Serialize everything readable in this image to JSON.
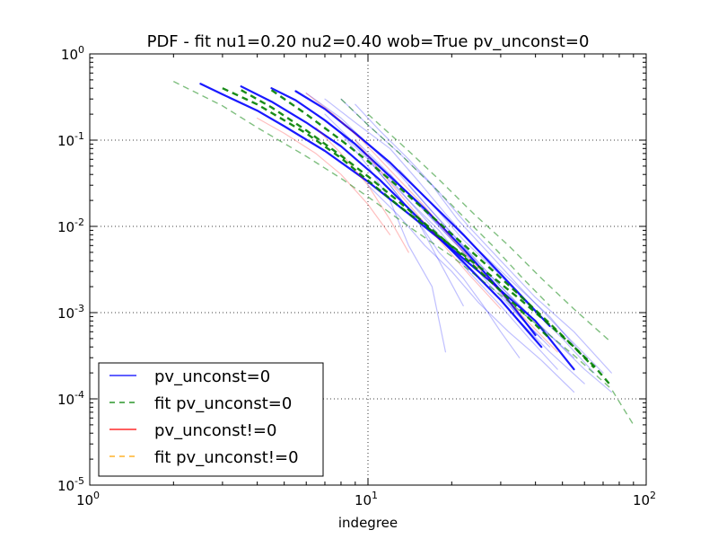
{
  "chart_data": {
    "type": "line",
    "title": "PDF - fit nu1=0.20 nu2=0.40 wob=True pv_unconst=0",
    "xlabel": "indegree",
    "ylabel": "",
    "x_scale": "log",
    "y_scale": "log",
    "xlim": [
      1,
      100
    ],
    "ylim": [
      1e-05,
      1
    ],
    "grid": true,
    "grid_style": "dotted",
    "legend_location": "lower-left",
    "x_ticks": [
      {
        "value": 1,
        "base": "10",
        "exp": "0"
      },
      {
        "value": 10,
        "base": "10",
        "exp": "1"
      },
      {
        "value": 100,
        "base": "10",
        "exp": "2"
      }
    ],
    "y_ticks": [
      {
        "value": 1,
        "base": "10",
        "exp": "0"
      },
      {
        "value": 0.1,
        "base": "10",
        "exp": "-1"
      },
      {
        "value": 0.01,
        "base": "10",
        "exp": "-2"
      },
      {
        "value": 0.001,
        "base": "10",
        "exp": "-3"
      },
      {
        "value": 0.0001,
        "base": "10",
        "exp": "-4"
      },
      {
        "value": 1e-05,
        "base": "10",
        "exp": "-5"
      }
    ],
    "legend": [
      {
        "label": "pv_unconst=0",
        "color": "#0000ff",
        "dash": false
      },
      {
        "label": "fit pv_unconst=0",
        "color": "#008000",
        "dash": true
      },
      {
        "label": "pv_unconst!=0",
        "color": "#ff0000",
        "dash": false
      },
      {
        "label": "fit pv_unconst!=0",
        "color": "#ffa500",
        "dash": true
      }
    ],
    "series": [
      {
        "group": "pv_unconst=0",
        "color": "#0000ff",
        "alpha": 0.9,
        "width": 2.2,
        "x": [
          2.5,
          3,
          4,
          5,
          7,
          10,
          14,
          20,
          28,
          40,
          55
        ],
        "y": [
          0.45,
          0.34,
          0.22,
          0.145,
          0.075,
          0.033,
          0.014,
          0.0055,
          0.0022,
          0.0008,
          0.00022
        ]
      },
      {
        "group": "pv_unconst=0",
        "color": "#0000ff",
        "alpha": 0.9,
        "width": 2.2,
        "x": [
          3.5,
          4.5,
          6,
          8,
          11,
          15,
          21,
          30,
          42
        ],
        "y": [
          0.42,
          0.28,
          0.16,
          0.085,
          0.035,
          0.013,
          0.0045,
          0.0014,
          0.0004
        ]
      },
      {
        "group": "pv_unconst=0",
        "color": "#0000ff",
        "alpha": 0.9,
        "width": 2.2,
        "x": [
          4.5,
          5.5,
          7,
          9,
          12,
          16,
          22,
          30,
          40
        ],
        "y": [
          0.4,
          0.29,
          0.17,
          0.09,
          0.038,
          0.016,
          0.0055,
          0.0018,
          0.00055
        ]
      },
      {
        "group": "pv_unconst=0",
        "color": "#0000ff",
        "alpha": 0.9,
        "width": 2.2,
        "x": [
          5.5,
          7,
          9,
          12,
          16,
          22,
          30,
          45
        ],
        "y": [
          0.37,
          0.23,
          0.12,
          0.055,
          0.022,
          0.008,
          0.0028,
          0.0007
        ]
      },
      {
        "group": "pv_unconst=0",
        "color": "#0000ff",
        "alpha": 0.25,
        "width": 1.2,
        "x": [
          6,
          8,
          10,
          13,
          17,
          22,
          30,
          40,
          55
        ],
        "y": [
          0.35,
          0.18,
          0.09,
          0.04,
          0.015,
          0.006,
          0.002,
          0.0008,
          0.0003
        ]
      },
      {
        "group": "pv_unconst=0",
        "color": "#0000ff",
        "alpha": 0.25,
        "width": 1.2,
        "x": [
          7,
          9,
          12,
          15,
          19,
          24,
          32,
          45,
          60
        ],
        "y": [
          0.3,
          0.16,
          0.08,
          0.035,
          0.014,
          0.006,
          0.0025,
          0.0009,
          0.0003
        ]
      },
      {
        "group": "pv_unconst=0",
        "color": "#0000ff",
        "alpha": 0.25,
        "width": 1.2,
        "x": [
          8,
          10,
          13,
          17,
          21,
          27,
          35,
          50,
          70
        ],
        "y": [
          0.3,
          0.15,
          0.07,
          0.03,
          0.012,
          0.005,
          0.002,
          0.0006,
          0.0002
        ]
      },
      {
        "group": "pv_unconst=0",
        "color": "#0000ff",
        "alpha": 0.25,
        "width": 1.2,
        "x": [
          9,
          11,
          14,
          18,
          23,
          30,
          40,
          55,
          75
        ],
        "y": [
          0.26,
          0.13,
          0.06,
          0.025,
          0.01,
          0.004,
          0.0015,
          0.0006,
          0.0002
        ]
      },
      {
        "group": "pv_unconst=0",
        "color": "#0000ff",
        "alpha": 0.25,
        "width": 1.2,
        "x": [
          6.5,
          8,
          10,
          12,
          15,
          18,
          22
        ],
        "y": [
          0.2,
          0.12,
          0.06,
          0.03,
          0.012,
          0.004,
          0.0012
        ]
      },
      {
        "group": "pv_unconst=0",
        "color": "#0000ff",
        "alpha": 0.25,
        "width": 1.2,
        "x": [
          8,
          10,
          12,
          14,
          17,
          19
        ],
        "y": [
          0.12,
          0.05,
          0.02,
          0.006,
          0.002,
          0.00035
        ]
      },
      {
        "group": "pv_unconst=0",
        "color": "#0000ff",
        "alpha": 0.25,
        "width": 1.2,
        "x": [
          10,
          12,
          15,
          18,
          22,
          26,
          30,
          35
        ],
        "y": [
          0.06,
          0.03,
          0.012,
          0.005,
          0.0025,
          0.0012,
          0.0006,
          0.0003
        ]
      },
      {
        "group": "pv_unconst=0",
        "color": "#0000ff",
        "alpha": 0.25,
        "width": 1.2,
        "x": [
          12,
          16,
          20,
          26,
          34,
          42
        ],
        "y": [
          0.04,
          0.015,
          0.007,
          0.003,
          0.001,
          0.0005
        ]
      },
      {
        "group": "pv_unconst=0",
        "color": "#0000ff",
        "alpha": 0.25,
        "width": 1.2,
        "x": [
          14,
          18,
          23,
          30,
          40,
          60,
          75
        ],
        "y": [
          0.03,
          0.012,
          0.005,
          0.002,
          0.0008,
          0.00022,
          0.00012
        ]
      },
      {
        "group": "pv_unconst=0",
        "color": "#0000ff",
        "alpha": 0.25,
        "width": 1.2,
        "x": [
          11,
          14,
          18,
          22,
          28,
          35,
          45,
          60
        ],
        "y": [
          0.05,
          0.02,
          0.009,
          0.004,
          0.0018,
          0.0008,
          0.00035,
          0.00015
        ]
      },
      {
        "group": "pv_unconst=0",
        "color": "#0000ff",
        "alpha": 0.25,
        "width": 1.2,
        "x": [
          9,
          12,
          16,
          21,
          27,
          35,
          45
        ],
        "y": [
          0.1,
          0.04,
          0.015,
          0.006,
          0.0022,
          0.0009,
          0.0004
        ]
      },
      {
        "group": "pv_unconst=0",
        "color": "#0000ff",
        "alpha": 0.25,
        "width": 1.2,
        "x": [
          13,
          17,
          22,
          29,
          38,
          50,
          65
        ],
        "y": [
          0.045,
          0.018,
          0.007,
          0.003,
          0.0012,
          0.0005,
          0.0002
        ]
      },
      {
        "group": "pv_unconst=0",
        "color": "#0000ff",
        "alpha": 0.25,
        "width": 1.2,
        "x": [
          10,
          13,
          16,
          20,
          25,
          32,
          42,
          55
        ],
        "y": [
          0.03,
          0.013,
          0.006,
          0.003,
          0.0013,
          0.0006,
          0.00028,
          0.00012
        ]
      },
      {
        "group": "pv_unconst=0",
        "color": "#0000ff",
        "alpha": 0.25,
        "width": 1.2,
        "x": [
          7,
          9,
          11,
          14,
          18,
          23,
          30,
          38,
          48
        ],
        "y": [
          0.2,
          0.09,
          0.045,
          0.02,
          0.008,
          0.003,
          0.0012,
          0.0005,
          0.00022
        ]
      },
      {
        "group": "pv_unconst!=0",
        "color": "#ff0000",
        "alpha": 0.25,
        "width": 1.2,
        "x": [
          6,
          7.5,
          9.5,
          12,
          16,
          21,
          28,
          36,
          48
        ],
        "y": [
          0.35,
          0.2,
          0.1,
          0.045,
          0.017,
          0.006,
          0.0022,
          0.0009,
          0.00035
        ]
      },
      {
        "group": "pv_unconst!=0",
        "color": "#ff0000",
        "alpha": 0.25,
        "width": 1.2,
        "x": [
          4,
          5,
          6.5,
          8,
          10,
          12
        ],
        "y": [
          0.18,
          0.12,
          0.07,
          0.04,
          0.018,
          0.008
        ]
      },
      {
        "group": "pv_unconst!=0",
        "color": "#ff0000",
        "alpha": 0.25,
        "width": 1.2,
        "x": [
          6.5,
          8,
          10,
          12,
          14
        ],
        "y": [
          0.14,
          0.07,
          0.03,
          0.012,
          0.005
        ]
      },
      {
        "group": "pv_unconst!=0",
        "color": "#ff0000",
        "alpha": 0.25,
        "width": 1.2,
        "x": [
          9,
          11,
          14,
          18,
          23,
          30
        ],
        "y": [
          0.1,
          0.045,
          0.018,
          0.007,
          0.0028,
          0.0011
        ]
      },
      {
        "group": "fit pv_unconst=0",
        "color": "#008000",
        "alpha": 0.9,
        "width": 2.4,
        "dash": true,
        "x": [
          3,
          4,
          6,
          8,
          10,
          13,
          17,
          22,
          28,
          35,
          45,
          55,
          65
        ],
        "y": [
          0.4,
          0.26,
          0.12,
          0.062,
          0.034,
          0.017,
          0.0088,
          0.0047,
          0.0026,
          0.00145,
          0.00072,
          0.0004,
          0.00023
        ]
      },
      {
        "group": "fit pv_unconst=0",
        "color": "#008000",
        "alpha": 0.9,
        "width": 2.4,
        "dash": true,
        "x": [
          3.5,
          4.5,
          6,
          8,
          10,
          13,
          17,
          22,
          28,
          35,
          45
        ],
        "y": [
          0.38,
          0.24,
          0.13,
          0.066,
          0.038,
          0.019,
          0.0092,
          0.0045,
          0.0022,
          0.0011,
          0.0005
        ]
      },
      {
        "group": "fit pv_unconst=0",
        "color": "#008000",
        "alpha": 0.9,
        "width": 2.4,
        "dash": true,
        "x": [
          4.5,
          6,
          8,
          10,
          13,
          17,
          22,
          28,
          35,
          45,
          55,
          65,
          75
        ],
        "y": [
          0.38,
          0.2,
          0.1,
          0.057,
          0.028,
          0.013,
          0.0062,
          0.0031,
          0.0016,
          0.00075,
          0.0004,
          0.00024,
          0.00014
        ]
      },
      {
        "group": "fit pv_unconst=0",
        "color": "#008000",
        "alpha": 0.5,
        "width": 1.4,
        "dash": true,
        "x": [
          2,
          3,
          4,
          6,
          8,
          10,
          14,
          20,
          28,
          40,
          55,
          75,
          90
        ],
        "y": [
          0.48,
          0.25,
          0.14,
          0.065,
          0.036,
          0.022,
          0.01,
          0.0045,
          0.0019,
          0.00075,
          0.00032,
          0.00013,
          5e-05
        ]
      },
      {
        "group": "fit pv_unconst=0",
        "color": "#008000",
        "alpha": 0.5,
        "width": 1.4,
        "dash": true,
        "x": [
          8,
          10,
          13,
          17,
          22,
          28,
          36,
          45
        ],
        "y": [
          0.3,
          0.15,
          0.07,
          0.03,
          0.013,
          0.006,
          0.0025,
          0.0012
        ]
      },
      {
        "group": "fit pv_unconst=0",
        "color": "#008000",
        "alpha": 0.5,
        "width": 1.4,
        "dash": true,
        "x": [
          10,
          14,
          18,
          24,
          32,
          42,
          55,
          75
        ],
        "y": [
          0.2,
          0.075,
          0.035,
          0.014,
          0.006,
          0.0025,
          0.0011,
          0.00045
        ]
      }
    ]
  }
}
